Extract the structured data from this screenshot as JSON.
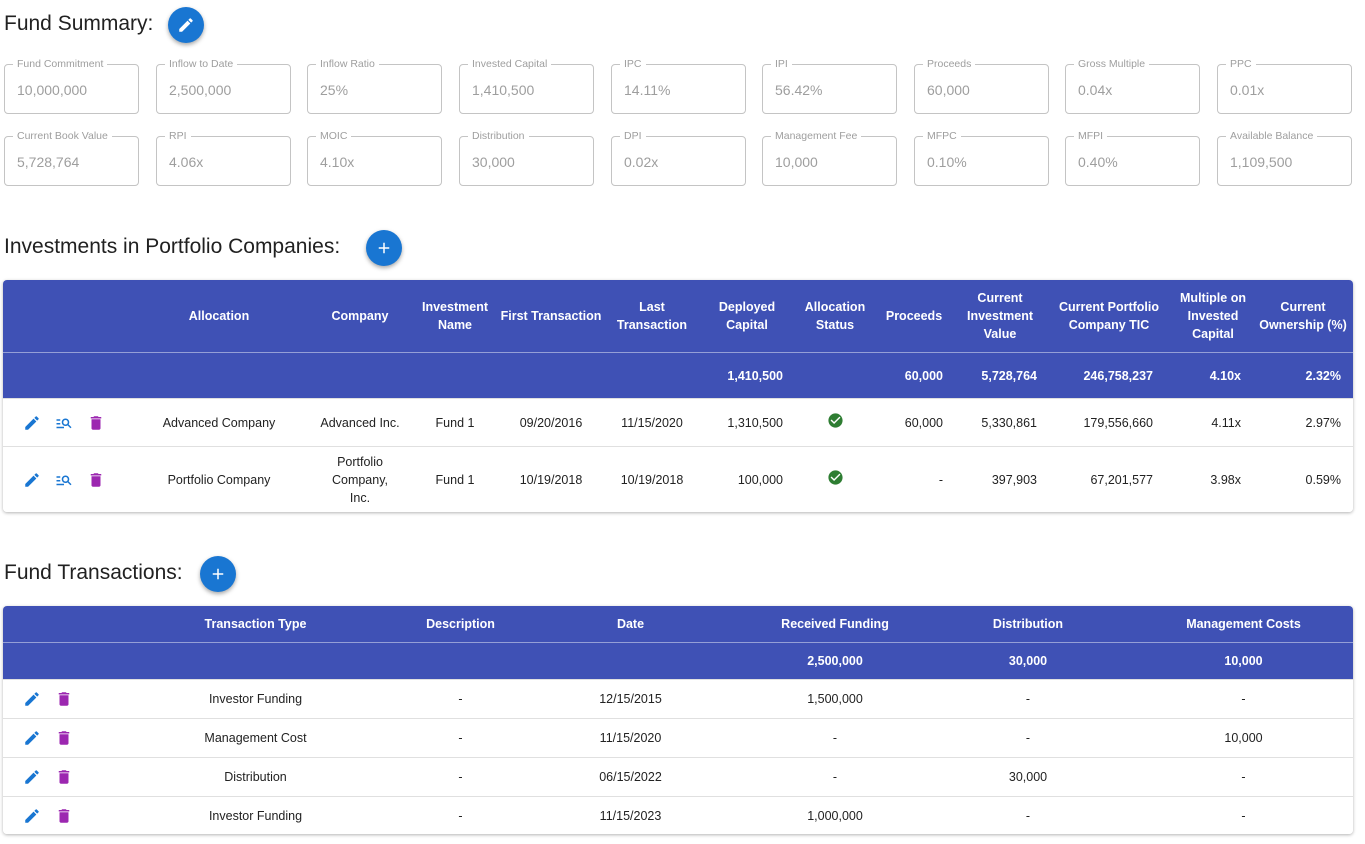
{
  "fund_summary": {
    "title": "Fund Summary:",
    "fields": [
      {
        "label": "Fund Commitment",
        "value": "10,000,000"
      },
      {
        "label": "Inflow to Date",
        "value": "2,500,000"
      },
      {
        "label": "Inflow Ratio",
        "value": "25%"
      },
      {
        "label": "Invested Capital",
        "value": "1,410,500"
      },
      {
        "label": "IPC",
        "value": "14.11%"
      },
      {
        "label": "IPI",
        "value": "56.42%"
      },
      {
        "label": "Proceeds",
        "value": "60,000"
      },
      {
        "label": "Gross Multiple",
        "value": "0.04x"
      },
      {
        "label": "PPC",
        "value": "0.01x"
      },
      {
        "label": "Current Book Value",
        "value": "5,728,764"
      },
      {
        "label": "RPI",
        "value": "4.06x"
      },
      {
        "label": "MOIC",
        "value": "4.10x"
      },
      {
        "label": "Distribution",
        "value": "30,000"
      },
      {
        "label": "DPI",
        "value": "0.02x"
      },
      {
        "label": "Management Fee",
        "value": "10,000"
      },
      {
        "label": "MFPC",
        "value": "0.10%"
      },
      {
        "label": "MFPI",
        "value": "0.40%"
      },
      {
        "label": "Available Balance",
        "value": "1,109,500"
      }
    ]
  },
  "investments": {
    "title": "Investments in Portfolio Companies:",
    "headers": {
      "allocation": "Allocation",
      "company": "Company",
      "investment_name": "Investment Name",
      "first_transaction": "First Transaction",
      "last_transaction": "Last Transaction",
      "deployed_capital": "Deployed Capital",
      "allocation_status": "Allocation Status",
      "proceeds": "Proceeds",
      "current_investment_value": "Current Investment Value",
      "current_portfolio_tic": "Current Portfolio Company TIC",
      "multiple": "Multiple on Invested Capital",
      "ownership": "Current Ownership (%)"
    },
    "totals": {
      "deployed_capital": "1,410,500",
      "proceeds": "60,000",
      "current_investment_value": "5,728,764",
      "current_portfolio_tic": "246,758,237",
      "multiple": "4.10x",
      "ownership": "2.32%"
    },
    "rows": [
      {
        "allocation": "Advanced Company",
        "company": "Advanced Inc.",
        "investment_name": "Fund 1",
        "first_transaction": "09/20/2016",
        "last_transaction": "11/15/2020",
        "deployed_capital": "1,310,500",
        "proceeds": "60,000",
        "current_investment_value": "5,330,861",
        "current_portfolio_tic": "179,556,660",
        "multiple": "4.11x",
        "ownership": "2.97%"
      },
      {
        "allocation": "Portfolio Company",
        "company": "Portfolio Company, Inc.",
        "investment_name": "Fund 1",
        "first_transaction": "10/19/2018",
        "last_transaction": "10/19/2018",
        "deployed_capital": "100,000",
        "proceeds": "-",
        "current_investment_value": "397,903",
        "current_portfolio_tic": "67,201,577",
        "multiple": "3.98x",
        "ownership": "0.59%"
      }
    ]
  },
  "transactions": {
    "title": "Fund Transactions:",
    "headers": {
      "type": "Transaction Type",
      "description": "Description",
      "date": "Date",
      "received_funding": "Received Funding",
      "distribution": "Distribution",
      "management_costs": "Management Costs"
    },
    "totals": {
      "received_funding": "2,500,000",
      "distribution": "30,000",
      "management_costs": "10,000"
    },
    "rows": [
      {
        "type": "Investor Funding",
        "description": "-",
        "date": "12/15/2015",
        "received_funding": "1,500,000",
        "distribution": "-",
        "management_costs": "-"
      },
      {
        "type": "Management Cost",
        "description": "-",
        "date": "11/15/2020",
        "received_funding": "-",
        "distribution": "-",
        "management_costs": "10,000"
      },
      {
        "type": "Distribution",
        "description": "-",
        "date": "06/15/2022",
        "received_funding": "-",
        "distribution": "30,000",
        "management_costs": "-"
      },
      {
        "type": "Investor Funding",
        "description": "-",
        "date": "11/15/2023",
        "received_funding": "1,000,000",
        "distribution": "-",
        "management_costs": "-"
      }
    ]
  },
  "colors": {
    "header_bg": "#3f51b5",
    "fab": "#1976d2",
    "edit_icon": "#1976d2",
    "delete_icon": "#9c27b0",
    "status_ok": "#2e7d32"
  }
}
